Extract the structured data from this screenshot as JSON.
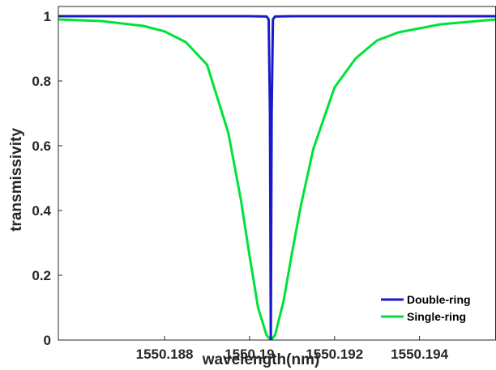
{
  "chart_data": {
    "type": "line",
    "xlabel": "wavelength(nm)",
    "ylabel": "transmissivity",
    "xlim": [
      1550.1855,
      1550.1958
    ],
    "ylim": [
      0,
      1.03
    ],
    "xticks": [
      1550.188,
      1550.19,
      1550.192,
      1550.194
    ],
    "xtick_labels": [
      "1550.188",
      "1550.19",
      "1550.192",
      "1550.194"
    ],
    "yticks": [
      0,
      0.2,
      0.4,
      0.6,
      0.8,
      1
    ],
    "ytick_labels": [
      "0",
      "0.2",
      "0.4",
      "0.6",
      "0.8",
      "1"
    ],
    "grid": false,
    "legend_position": "bottom-right",
    "resonance_nm": 1550.1905,
    "series": [
      {
        "name": "Double-ring",
        "color": "#1a1acc",
        "x": [
          1550.1855,
          1550.188,
          1550.19,
          1550.1904,
          1550.19045,
          1550.19048,
          1550.1905,
          1550.19052,
          1550.19055,
          1550.1906,
          1550.191,
          1550.194,
          1550.1958
        ],
        "y": [
          1.0,
          1.0,
          1.0,
          0.999,
          0.99,
          0.7,
          0.0,
          0.7,
          0.99,
          0.999,
          1.0,
          1.0,
          1.0
        ]
      },
      {
        "name": "Single-ring",
        "color": "#00e23a",
        "x": [
          1550.1855,
          1550.1865,
          1550.1875,
          1550.188,
          1550.1885,
          1550.189,
          1550.1895,
          1550.1898,
          1550.19,
          1550.1902,
          1550.1904,
          1550.1905,
          1550.1906,
          1550.1908,
          1550.191,
          1550.1912,
          1550.1915,
          1550.192,
          1550.1925,
          1550.193,
          1550.1935,
          1550.1945,
          1550.1958
        ],
        "y": [
          0.99,
          0.985,
          0.97,
          0.953,
          0.92,
          0.85,
          0.64,
          0.43,
          0.26,
          0.1,
          0.015,
          0.0,
          0.015,
          0.12,
          0.27,
          0.41,
          0.59,
          0.78,
          0.87,
          0.925,
          0.95,
          0.975,
          0.99
        ]
      }
    ]
  }
}
